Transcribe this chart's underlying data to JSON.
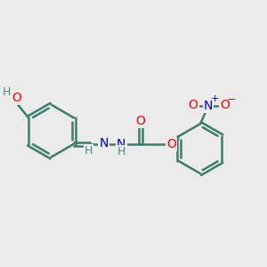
{
  "background_color": "#ebebeb",
  "bond_color": "#3d7d6b",
  "bond_width": 1.8,
  "atom_colors": {
    "O": "#ff0000",
    "N": "#0000cc",
    "H": "#4a8a7a",
    "C": "#3d7d6b"
  },
  "font_size_atom": 10,
  "font_size_H": 9,
  "font_size_charge": 8
}
